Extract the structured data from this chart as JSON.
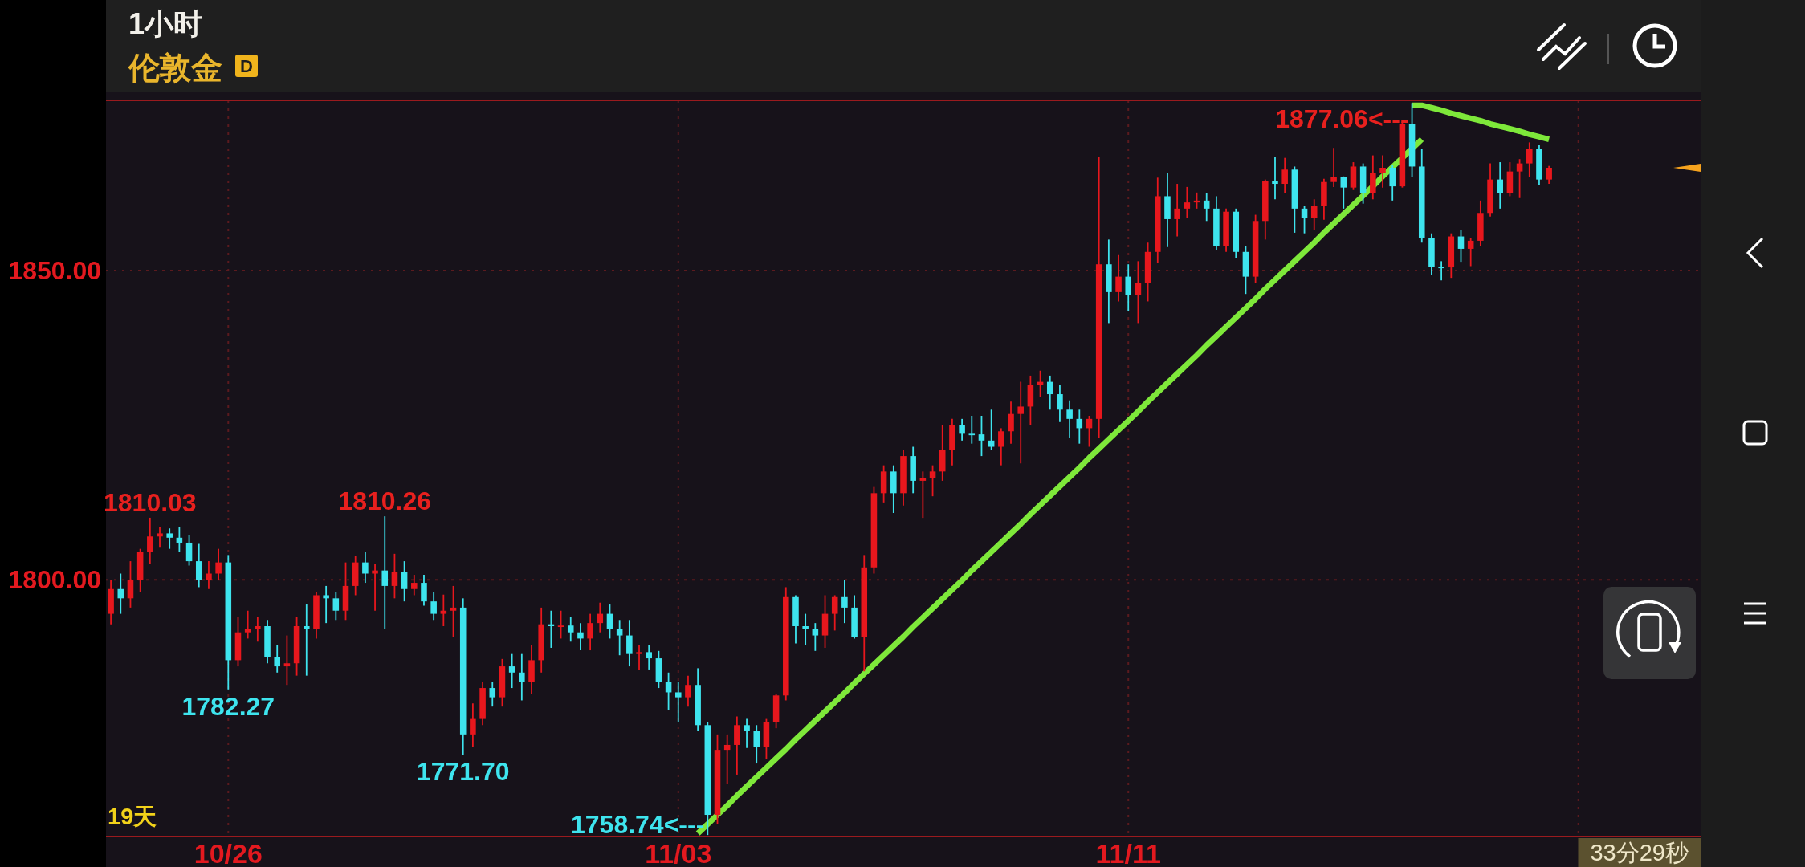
{
  "chart_data": {
    "type": "candlestick",
    "title": "1小时",
    "subtitle": "伦敦金",
    "categories": [
      null,
      null,
      null,
      null,
      null,
      null,
      null,
      null,
      null,
      null,
      null,
      null,
      "10/26",
      null,
      null,
      null,
      null,
      null,
      null,
      null,
      null,
      null,
      null,
      null,
      null,
      null,
      null,
      null,
      null,
      null,
      null,
      null,
      null,
      null,
      null,
      null,
      null,
      null,
      null,
      null,
      null,
      null,
      null,
      null,
      null,
      null,
      null,
      null,
      null,
      null,
      null,
      null,
      null,
      null,
      null,
      null,
      null,
      null,
      "11/03",
      null,
      null,
      null,
      null,
      null,
      null,
      null,
      null,
      null,
      null,
      null,
      null,
      null,
      null,
      null,
      null,
      null,
      null,
      null,
      null,
      null,
      null,
      null,
      null,
      null,
      null,
      null,
      null,
      null,
      null,
      null,
      null,
      null,
      null,
      null,
      null,
      null,
      null,
      null,
      null,
      null,
      null,
      null,
      null,
      null,
      "11/11",
      null,
      null,
      null,
      null,
      null,
      null,
      null,
      null,
      null,
      null,
      null,
      null,
      null,
      null,
      null,
      null,
      null,
      null,
      null,
      null,
      null,
      null,
      null,
      null,
      null,
      null,
      null,
      null,
      null,
      null,
      null,
      null,
      null,
      null,
      null,
      null,
      null,
      null,
      null,
      null,
      null,
      null,
      null,
      null,
      null,
      null,
      null,
      null,
      null,
      null,
      null,
      null,
      null,
      null,
      null,
      null,
      null,
      null
    ],
    "ohlc": [
      [
        1794.5,
        1800,
        1792.8,
        1798.5
      ],
      [
        1798.5,
        1801,
        1794.5,
        1797
      ],
      [
        1797,
        1803,
        1795.5,
        1800
      ],
      [
        1800,
        1805,
        1798,
        1804.5
      ],
      [
        1804.5,
        1810.03,
        1802.5,
        1807
      ],
      [
        1807,
        1808.5,
        1805.2,
        1807.5
      ],
      [
        1807.5,
        1808.3,
        1805,
        1806.8
      ],
      [
        1806.8,
        1808.5,
        1804.5,
        1806
      ],
      [
        1806,
        1807.3,
        1802.3,
        1803
      ],
      [
        1803,
        1805.8,
        1798.8,
        1800
      ],
      [
        1800,
        1803,
        1798.5,
        1801
      ],
      [
        1801,
        1805,
        1800,
        1802.8
      ],
      [
        1802.8,
        1804,
        1782.27,
        1787
      ],
      [
        1787,
        1794,
        1786,
        1791.5
      ],
      [
        1791.5,
        1795,
        1790.5,
        1792
      ],
      [
        1792,
        1794,
        1790,
        1792.5
      ],
      [
        1792.5,
        1793.5,
        1786.5,
        1787.5
      ],
      [
        1787.5,
        1789.5,
        1785,
        1786
      ],
      [
        1786,
        1791,
        1783,
        1786.5
      ],
      [
        1786.5,
        1794,
        1784.5,
        1792.5
      ],
      [
        1792.5,
        1796,
        1784.5,
        1792
      ],
      [
        1792,
        1798,
        1790.5,
        1797.5
      ],
      [
        1797.5,
        1799,
        1793,
        1797
      ],
      [
        1797,
        1798,
        1793.5,
        1795
      ],
      [
        1795,
        1802.8,
        1793.5,
        1799
      ],
      [
        1799,
        1803.8,
        1797.5,
        1802.8
      ],
      [
        1802.8,
        1804.5,
        1799.5,
        1801
      ],
      [
        1801,
        1802.5,
        1795,
        1801.5
      ],
      [
        1801.5,
        1810.26,
        1792,
        1799
      ],
      [
        1799,
        1804.2,
        1797,
        1801.3
      ],
      [
        1801.3,
        1803,
        1796.5,
        1798.5
      ],
      [
        1798.5,
        1800.8,
        1797.5,
        1799.5
      ],
      [
        1799.5,
        1800.8,
        1795.8,
        1796.5
      ],
      [
        1796.5,
        1798,
        1793.5,
        1794.5
      ],
      [
        1794.5,
        1797.6,
        1792.5,
        1795
      ],
      [
        1795,
        1799,
        1790.8,
        1795.5
      ],
      [
        1795.5,
        1797,
        1771.7,
        1775
      ],
      [
        1775,
        1780,
        1773,
        1777.5
      ],
      [
        1777.5,
        1783.5,
        1776.5,
        1782.5
      ],
      [
        1782.5,
        1783.5,
        1779.5,
        1781
      ],
      [
        1781,
        1787.2,
        1779.5,
        1786
      ],
      [
        1786,
        1788,
        1782.5,
        1785
      ],
      [
        1785,
        1788,
        1780.5,
        1783.5
      ],
      [
        1783.5,
        1789.5,
        1781.5,
        1787
      ],
      [
        1787,
        1795.5,
        1785,
        1792.8
      ],
      [
        1792.8,
        1795,
        1789,
        1792.5
      ],
      [
        1792.5,
        1795,
        1790.5,
        1792.6
      ],
      [
        1792.6,
        1794,
        1790,
        1791.5
      ],
      [
        1791.5,
        1793,
        1788.6,
        1790.5
      ],
      [
        1790.5,
        1794.5,
        1788.6,
        1793
      ],
      [
        1793,
        1796.3,
        1791.5,
        1794.5
      ],
      [
        1794.5,
        1796,
        1790.5,
        1792
      ],
      [
        1792,
        1793.5,
        1787.8,
        1791
      ],
      [
        1791,
        1793.5,
        1786,
        1788
      ],
      [
        1788,
        1789.5,
        1785.5,
        1788.3
      ],
      [
        1788.3,
        1789.5,
        1785.5,
        1787.3
      ],
      [
        1787.3,
        1788.5,
        1782.5,
        1783.5
      ],
      [
        1783.5,
        1785,
        1779,
        1781.8
      ],
      [
        1781.8,
        1783.5,
        1777,
        1781
      ],
      [
        1781,
        1784.5,
        1779.5,
        1783
      ],
      [
        1783,
        1785.7,
        1775.5,
        1776.5
      ],
      [
        1776.5,
        1777,
        1758.74,
        1762
      ],
      [
        1762,
        1775,
        1760.5,
        1772.5
      ],
      [
        1772.5,
        1775,
        1767,
        1773.3
      ],
      [
        1773.3,
        1777.9,
        1768.5,
        1776.5
      ],
      [
        1776.5,
        1777.5,
        1772.8,
        1775.5
      ],
      [
        1775.5,
        1776.5,
        1770.3,
        1773
      ],
      [
        1773,
        1777.5,
        1771,
        1777
      ],
      [
        1777,
        1781.5,
        1776,
        1781.3
      ],
      [
        1781.3,
        1798.8,
        1780.5,
        1797.2
      ],
      [
        1797.2,
        1797.5,
        1789.7,
        1792.5
      ],
      [
        1792.5,
        1794.5,
        1789.5,
        1792
      ],
      [
        1792,
        1793,
        1788.5,
        1791
      ],
      [
        1791,
        1797.5,
        1789,
        1794.5
      ],
      [
        1794.5,
        1797.5,
        1791.8,
        1797.2
      ],
      [
        1797.2,
        1800,
        1793,
        1795.5
      ],
      [
        1795.5,
        1797.5,
        1790.5,
        1790.8
      ],
      [
        1790.8,
        1804,
        1785.2,
        1802
      ],
      [
        1802,
        1815,
        1801,
        1814
      ],
      [
        1814,
        1818.5,
        1812.5,
        1817.5
      ],
      [
        1817.5,
        1818.5,
        1810.8,
        1814
      ],
      [
        1814,
        1821,
        1812,
        1820
      ],
      [
        1820,
        1821.5,
        1814,
        1816
      ],
      [
        1816,
        1817.5,
        1810,
        1816.5
      ],
      [
        1816.5,
        1818.5,
        1813.5,
        1817.5
      ],
      [
        1817.5,
        1825,
        1816,
        1821
      ],
      [
        1821,
        1826,
        1818.5,
        1825
      ],
      [
        1825,
        1826,
        1822.5,
        1823.6
      ],
      [
        1823.6,
        1826.5,
        1822,
        1823.5
      ],
      [
        1823.5,
        1826.5,
        1820,
        1822.5
      ],
      [
        1822.5,
        1827.5,
        1821,
        1821.5
      ],
      [
        1821.5,
        1824.5,
        1818.5,
        1824
      ],
      [
        1824,
        1828.8,
        1822,
        1826.8
      ],
      [
        1826.8,
        1832,
        1818.8,
        1828
      ],
      [
        1828,
        1833,
        1825,
        1831.5
      ],
      [
        1831.5,
        1833.8,
        1829.5,
        1832
      ],
      [
        1832,
        1833,
        1827.5,
        1830
      ],
      [
        1830,
        1831.5,
        1825.5,
        1827.5
      ],
      [
        1827.5,
        1829,
        1823,
        1826
      ],
      [
        1826,
        1827.5,
        1822,
        1824.5
      ],
      [
        1824.5,
        1826.5,
        1821.5,
        1826
      ],
      [
        1826,
        1868.3,
        1823,
        1851
      ],
      [
        1851,
        1855,
        1841.5,
        1846.5
      ],
      [
        1846.5,
        1852.5,
        1845,
        1849
      ],
      [
        1849,
        1851,
        1843.5,
        1846
      ],
      [
        1846,
        1851.5,
        1841.5,
        1848
      ],
      [
        1848,
        1854.5,
        1845,
        1853
      ],
      [
        1853,
        1865,
        1851.2,
        1862
      ],
      [
        1862,
        1865.7,
        1853.8,
        1858.3
      ],
      [
        1858.3,
        1864,
        1855.5,
        1860
      ],
      [
        1860,
        1863.5,
        1858.5,
        1861
      ],
      [
        1861,
        1862.6,
        1860,
        1861.3
      ],
      [
        1861.3,
        1862.5,
        1858,
        1860
      ],
      [
        1860,
        1862,
        1853.3,
        1854
      ],
      [
        1854,
        1860,
        1853,
        1859.5
      ],
      [
        1859.5,
        1860,
        1852,
        1853
      ],
      [
        1853,
        1854,
        1846.2,
        1849
      ],
      [
        1849,
        1859,
        1848,
        1858
      ],
      [
        1858,
        1864.7,
        1855,
        1864.5
      ],
      [
        1864.5,
        1868.3,
        1861.5,
        1864
      ],
      [
        1864,
        1868.2,
        1862.5,
        1866.3
      ],
      [
        1866.3,
        1866.8,
        1856.1,
        1860
      ],
      [
        1860,
        1860.5,
        1856,
        1858.5
      ],
      [
        1858.5,
        1861.5,
        1856.5,
        1860.4
      ],
      [
        1860.4,
        1864.8,
        1858.2,
        1864.3
      ],
      [
        1864.3,
        1869.8,
        1863.5,
        1865.1
      ],
      [
        1865.1,
        1865.2,
        1860,
        1863.4
      ],
      [
        1863.4,
        1867.5,
        1863,
        1866.8
      ],
      [
        1866.8,
        1867.3,
        1860.8,
        1862.5
      ],
      [
        1862.5,
        1868.6,
        1861.5,
        1865.8
      ],
      [
        1865.8,
        1868.6,
        1863.4,
        1866.6
      ],
      [
        1866.6,
        1867,
        1861.3,
        1863.6
      ],
      [
        1863.6,
        1874,
        1863.4,
        1873.7
      ],
      [
        1873.7,
        1877.06,
        1865.1,
        1866.8
      ],
      [
        1866.8,
        1869.6,
        1854.5,
        1855.2
      ],
      [
        1855.2,
        1856,
        1849.2,
        1850.6
      ],
      [
        1850.6,
        1851.5,
        1848.4,
        1850.5
      ],
      [
        1850.5,
        1856,
        1848.8,
        1855.5
      ],
      [
        1855.5,
        1856.5,
        1851.4,
        1853.5
      ],
      [
        1853.5,
        1855.3,
        1850.7,
        1854.8
      ],
      [
        1854.8,
        1861.3,
        1854,
        1859.3
      ],
      [
        1859.3,
        1867.3,
        1858.7,
        1864.7
      ],
      [
        1864.7,
        1867.5,
        1860,
        1862.5
      ],
      [
        1862.5,
        1867.5,
        1862,
        1866
      ],
      [
        1866,
        1868,
        1861.7,
        1867.3
      ],
      [
        1867.3,
        1870.7,
        1865.1,
        1869.6
      ],
      [
        1869.6,
        1870.3,
        1863.8,
        1864.7
      ],
      [
        1864.7,
        1866.9,
        1864,
        1866.6
      ],
      null,
      null,
      null,
      null,
      null,
      null,
      null,
      null,
      null,
      null,
      null,
      null,
      null,
      null,
      null
    ],
    "colors": [
      "#e8171d",
      "#3ee4ee",
      "#e8171d",
      "#e8171d",
      "#e8171d",
      "#e8171d",
      "#3ee4ee",
      "#3ee4ee",
      "#3ee4ee",
      "#3ee4ee",
      "#e8171d",
      "#e8171d",
      "#3ee4ee",
      "#e8171d",
      "#e8171d",
      "#e8171d",
      "#3ee4ee",
      "#3ee4ee",
      "#e8171d",
      "#e8171d",
      "#3ee4ee",
      "#e8171d",
      "#3ee4ee",
      "#3ee4ee",
      "#e8171d",
      "#e8171d",
      "#3ee4ee",
      "#e8171d",
      "#3ee4ee",
      "#e8171d",
      "#3ee4ee",
      "#e8171d",
      "#3ee4ee",
      "#3ee4ee",
      "#e8171d",
      "#e8171d",
      "#3ee4ee",
      "#e8171d",
      "#e8171d",
      "#3ee4ee",
      "#e8171d",
      "#3ee4ee",
      "#3ee4ee",
      "#e8171d",
      "#e8171d",
      "#3ee4ee",
      "#e8171d",
      "#3ee4ee",
      "#3ee4ee",
      "#e8171d",
      "#e8171d",
      "#3ee4ee",
      "#3ee4ee",
      "#3ee4ee",
      "#e8171d",
      "#3ee4ee",
      "#3ee4ee",
      "#3ee4ee",
      "#3ee4ee",
      "#e8171d",
      "#3ee4ee",
      "#3ee4ee",
      "#e8171d",
      "#e8171d",
      "#e8171d",
      "#3ee4ee",
      "#3ee4ee",
      "#e8171d",
      "#e8171d",
      "#e8171d",
      "#3ee4ee",
      "#3ee4ee",
      "#3ee4ee",
      "#e8171d",
      "#e8171d",
      "#3ee4ee",
      "#3ee4ee",
      "#e8171d",
      "#e8171d",
      "#e8171d",
      "#3ee4ee",
      "#e8171d",
      "#3ee4ee",
      "#e8171d",
      "#e8171d",
      "#e8171d",
      "#e8171d",
      "#3ee4ee",
      "#3ee4ee",
      "#3ee4ee",
      "#3ee4ee",
      "#e8171d",
      "#e8171d",
      "#e8171d",
      "#e8171d",
      "#e8171d",
      "#3ee4ee",
      "#3ee4ee",
      "#3ee4ee",
      "#3ee4ee",
      "#e8171d",
      "#e8171d",
      "#3ee4ee",
      "#e8171d",
      "#3ee4ee",
      "#e8171d",
      "#e8171d",
      "#e8171d",
      "#3ee4ee",
      "#e8171d",
      "#e8171d",
      "#e8171d",
      "#3ee4ee",
      "#3ee4ee",
      "#e8171d",
      "#3ee4ee",
      "#3ee4ee",
      "#e8171d",
      "#e8171d",
      "#3ee4ee",
      "#e8171d",
      "#3ee4ee",
      "#3ee4ee",
      "#e8171d",
      "#e8171d",
      "#e8171d",
      "#3ee4ee",
      "#e8171d",
      "#3ee4ee",
      "#e8171d",
      "#e8171d",
      "#3ee4ee",
      "#e8171d",
      "#3ee4ee",
      "#3ee4ee",
      "#3ee4ee",
      "#3ee4ee",
      "#e8171d",
      "#3ee4ee",
      "#e8171d",
      "#e8171d",
      "#e8171d",
      "#3ee4ee",
      "#e8171d",
      "#e8171d",
      "#e8171d",
      "#3ee4ee",
      "#e8171d",
      null,
      null,
      null,
      null,
      null,
      null,
      null,
      null,
      null,
      null,
      null,
      null,
      null,
      null,
      null
    ],
    "series": [
      {
        "type": "line",
        "color": "#7ee83a",
        "values": [
          null,
          null,
          null,
          null,
          null,
          null,
          null,
          null,
          null,
          null,
          null,
          null,
          null,
          null,
          null,
          null,
          null,
          null,
          null,
          null,
          null,
          null,
          null,
          null,
          null,
          null,
          null,
          null,
          null,
          null,
          null,
          null,
          null,
          null,
          null,
          null,
          null,
          null,
          null,
          null,
          null,
          null,
          null,
          null,
          null,
          null,
          null,
          null,
          null,
          null,
          null,
          null,
          null,
          null,
          null,
          null,
          null,
          null,
          null,
          null,
          1759.0,
          1760.5,
          1762.0,
          1763.5,
          1765.1,
          1766.6,
          1768.1,
          1769.6,
          1771.1,
          1772.6,
          1774.2,
          1775.7,
          1777.2,
          1778.7,
          1780.2,
          1781.7,
          1783.3,
          1784.8,
          1786.3,
          1787.8,
          1789.3,
          1790.8,
          1792.4,
          1793.9,
          1795.4,
          1796.9,
          1798.4,
          1799.9,
          1801.5,
          1803.0,
          1804.5,
          1806.0,
          1807.5,
          1809.0,
          1810.6,
          1812.1,
          1813.6,
          1815.1,
          1816.6,
          1818.1,
          1819.7,
          1821.2,
          1822.7,
          1824.2,
          1825.7,
          1827.2,
          1828.8,
          1830.3,
          1831.8,
          1833.3,
          1834.8,
          1836.3,
          1837.9,
          1839.4,
          1840.9,
          1842.4,
          1843.9,
          1845.4,
          1847.0,
          1848.5,
          1850.0,
          1851.5,
          1853.0,
          1854.5,
          1856.1,
          1857.6,
          1859.1,
          1860.6,
          1862.1,
          1863.6,
          1865.2,
          1866.7,
          1868.2,
          1869.7,
          1871.2,
          null,
          null,
          null,
          null,
          null,
          null,
          null,
          null,
          null,
          null,
          null,
          null,
          null,
          null,
          null,
          null,
          null,
          null,
          null,
          null,
          null,
          null,
          null,
          null,
          null,
          null,
          null,
          null
        ]
      },
      {
        "type": "line",
        "color": "#7ee83a",
        "values": [
          null,
          null,
          null,
          null,
          null,
          null,
          null,
          null,
          null,
          null,
          null,
          null,
          null,
          null,
          null,
          null,
          null,
          null,
          null,
          null,
          null,
          null,
          null,
          null,
          null,
          null,
          null,
          null,
          null,
          null,
          null,
          null,
          null,
          null,
          null,
          null,
          null,
          null,
          null,
          null,
          null,
          null,
          null,
          null,
          null,
          null,
          null,
          null,
          null,
          null,
          null,
          null,
          null,
          null,
          null,
          null,
          null,
          null,
          null,
          null,
          null,
          null,
          null,
          null,
          null,
          null,
          null,
          null,
          null,
          null,
          null,
          null,
          null,
          null,
          null,
          null,
          null,
          null,
          null,
          null,
          null,
          null,
          null,
          null,
          null,
          null,
          null,
          null,
          null,
          null,
          null,
          null,
          null,
          null,
          null,
          null,
          null,
          null,
          null,
          null,
          null,
          null,
          null,
          null,
          null,
          null,
          null,
          null,
          null,
          null,
          null,
          null,
          null,
          null,
          null,
          null,
          null,
          null,
          null,
          null,
          null,
          null,
          null,
          null,
          null,
          null,
          null,
          null,
          null,
          null,
          null,
          null,
          null,
          1876.7,
          1876.7,
          1876.3,
          1875.9,
          1875.4,
          1875.0,
          1874.6,
          1874.2,
          1873.7,
          1873.3,
          1872.9,
          1872.5,
          1872.0,
          1871.6,
          1871.2,
          null,
          null,
          null,
          null,
          null,
          null,
          null,
          null,
          null,
          null,
          null,
          null,
          null,
          null,
          null
        ]
      }
    ],
    "ylim": [
      1758.5,
      1877.5
    ],
    "yticks": [
      {
        "value": 1800,
        "label": "1800.00"
      },
      {
        "value": 1850,
        "label": "1850.00"
      }
    ],
    "grid": true,
    "annotations": [
      {
        "text": "1810.03",
        "y": 1810.03
      },
      {
        "text": "1810.26",
        "y": 1810.26
      },
      {
        "text": "1782.27",
        "y": 1782.27
      },
      {
        "text": "1771.70",
        "y": 1771.7
      },
      "1758.74<---",
      "1877.06<---",
      "D",
      "19天",
      "33分29秒"
    ]
  }
}
